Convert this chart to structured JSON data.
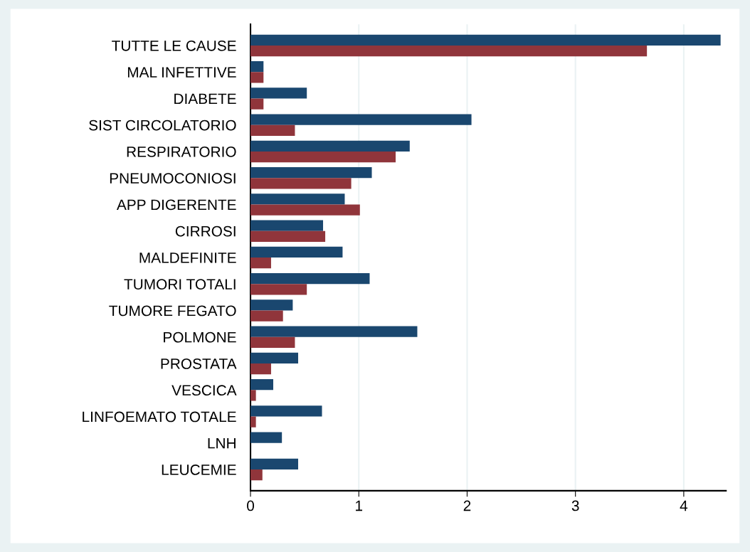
{
  "chart_data": {
    "type": "bar",
    "orientation": "horizontal",
    "categories": [
      "TUTTE LE CAUSE",
      "MAL INFETTIVE",
      "DIABETE",
      "SIST CIRCOLATORIO",
      "RESPIRATORIO",
      "PNEUMOCONIOSI",
      "APP DIGERENTE",
      "CIRROSI",
      "MALDEFINITE",
      "TUMORI TOTALI",
      "TUMORE FEGATO",
      "POLMONE",
      "PROSTATA",
      "VESCICA",
      "LINFOEMATO TOTALE",
      "LNH",
      "LEUCEMIE"
    ],
    "series": [
      {
        "color": "#1a476f",
        "values": [
          4.34,
          0.12,
          0.52,
          2.04,
          1.47,
          1.12,
          0.87,
          0.67,
          0.85,
          1.1,
          0.39,
          1.54,
          0.44,
          0.21,
          0.66,
          0.29,
          0.44
        ]
      },
      {
        "color": "#90353b",
        "values": [
          3.66,
          0.12,
          0.12,
          0.41,
          1.34,
          0.93,
          1.01,
          0.69,
          0.19,
          0.52,
          0.3,
          0.41,
          0.19,
          0.05,
          0.05,
          null,
          0.11
        ]
      }
    ],
    "xlim": [
      0,
      4.39
    ],
    "xticks": [
      0,
      1,
      2,
      3,
      4
    ],
    "grid": "x",
    "legend": false
  }
}
